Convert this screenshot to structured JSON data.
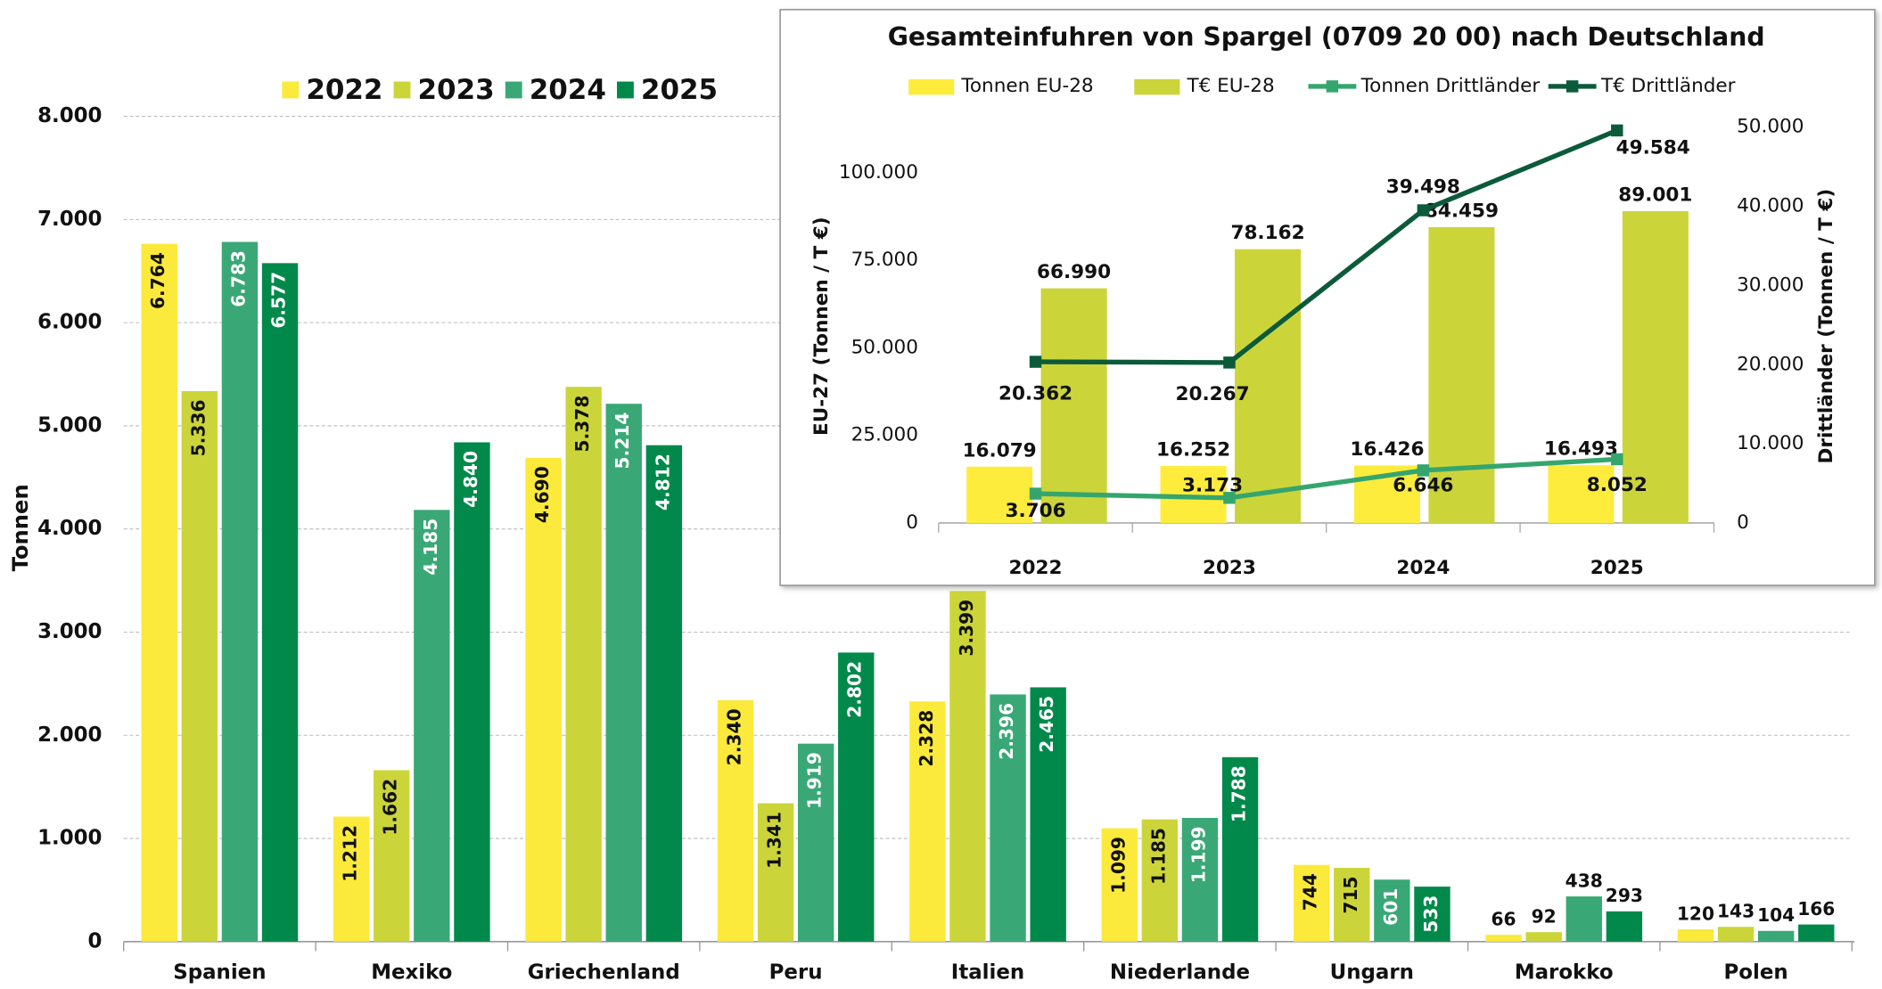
{
  "chart_data": [
    {
      "type": "bar",
      "y_label": "Tonnen",
      "categories": [
        "Spanien",
        "Mexiko",
        "Griechenland",
        "Peru",
        "Italien",
        "Niederlande",
        "Ungarn",
        "Marokko",
        "Polen"
      ],
      "series": [
        {
          "name": "2022",
          "color": "#fbe93c",
          "values": [
            6764,
            1212,
            4690,
            2340,
            2328,
            1099,
            744,
            66,
            120
          ],
          "value_labels": [
            "6.764",
            "1.212",
            "4.690",
            "2.340",
            "2.328",
            "1.099",
            "744",
            "66",
            "120"
          ]
        },
        {
          "name": "2023",
          "color": "#cbd53a",
          "values": [
            5336,
            1662,
            5378,
            1341,
            3399,
            1185,
            715,
            92,
            143
          ],
          "value_labels": [
            "5.336",
            "1.662",
            "5.378",
            "1.341",
            "3.399",
            "1.185",
            "715",
            "92",
            "143"
          ]
        },
        {
          "name": "2024",
          "color": "#3aa876",
          "values": [
            6783,
            4185,
            5214,
            1919,
            2396,
            1199,
            601,
            438,
            104
          ],
          "value_labels": [
            "6.783",
            "4.185",
            "5.214",
            "1.919",
            "2.396",
            "1.199",
            "601",
            "438",
            "104"
          ]
        },
        {
          "name": "2025",
          "color": "#00894b",
          "values": [
            6577,
            4840,
            4812,
            2802,
            2465,
            1788,
            533,
            293,
            166
          ],
          "value_labels": [
            "6.577",
            "4.840",
            "4.812",
            "2.802",
            "2.465",
            "1.788",
            "533",
            "293",
            "166"
          ]
        }
      ],
      "ylim": [
        0,
        8000
      ],
      "yticks": [
        0,
        {
          "value": 1000,
          "label": "1.000"
        },
        {
          "value": 2000,
          "label": "2.000"
        },
        {
          "value": 3000,
          "label": "3.000"
        },
        {
          "value": 4000,
          "label": "4.000"
        },
        {
          "value": 5000,
          "label": "5.000"
        },
        {
          "value": 6000,
          "label": "6.000"
        },
        {
          "value": 7000,
          "label": "7.000"
        },
        {
          "value": 8000,
          "label": "8.000"
        }
      ],
      "grid": true,
      "legend": "top"
    },
    {
      "type": "combo",
      "title": "Gesamteinfuhren von Spargel (0709 20 00) nach Deutschland",
      "y_label": "EU-27 (Tonnen / T €)",
      "y2_label": "Drittländer (Tonnen / T €)",
      "categories": [
        "2022",
        "2023",
        "2024",
        "2025"
      ],
      "series": [
        {
          "name": "Tonnen EU-28",
          "type": "bar",
          "color": "#fdec3c",
          "values": [
            16079,
            16252,
            16426,
            16493
          ],
          "value_labels": [
            "16.079",
            "16.252",
            "16.426",
            "16.493"
          ]
        },
        {
          "name": "T€ EU-28",
          "type": "bar",
          "color": "#cbd53a",
          "values": [
            66990,
            78162,
            84459,
            89001
          ],
          "value_labels": [
            "66.990",
            "78.162",
            "84.459",
            "89.001"
          ]
        },
        {
          "name": "Tonnen Drittländer",
          "type": "line",
          "axis": "y2",
          "color": "#35a56e",
          "values": [
            3706,
            3173,
            6646,
            8052
          ],
          "value_labels": [
            "3.706",
            "3.173",
            "6.646",
            "8.052"
          ]
        },
        {
          "name": "T€ Drittländer",
          "type": "line",
          "axis": "y2",
          "color": "#0b5b3b",
          "values": [
            20362,
            20267,
            39498,
            49584
          ],
          "value_labels": [
            "20.362",
            "20.267",
            "39.498",
            "49.584"
          ]
        }
      ],
      "ylim": [
        0,
        113000
      ],
      "yticks": [
        0,
        {
          "value": 25000,
          "label": "25.000"
        },
        {
          "value": 50000,
          "label": "50.000"
        },
        {
          "value": 75000,
          "label": "75.000"
        },
        {
          "value": 100000,
          "label": "100.000"
        }
      ],
      "y2lim": [
        0,
        50000
      ],
      "y2ticks": [
        0,
        {
          "value": 10000,
          "label": "10.000"
        },
        {
          "value": 20000,
          "label": "20.000"
        },
        {
          "value": 30000,
          "label": "30.000"
        },
        {
          "value": 40000,
          "label": "40.000"
        },
        {
          "value": 50000,
          "label": "50.000"
        }
      ],
      "legend": "top"
    }
  ]
}
